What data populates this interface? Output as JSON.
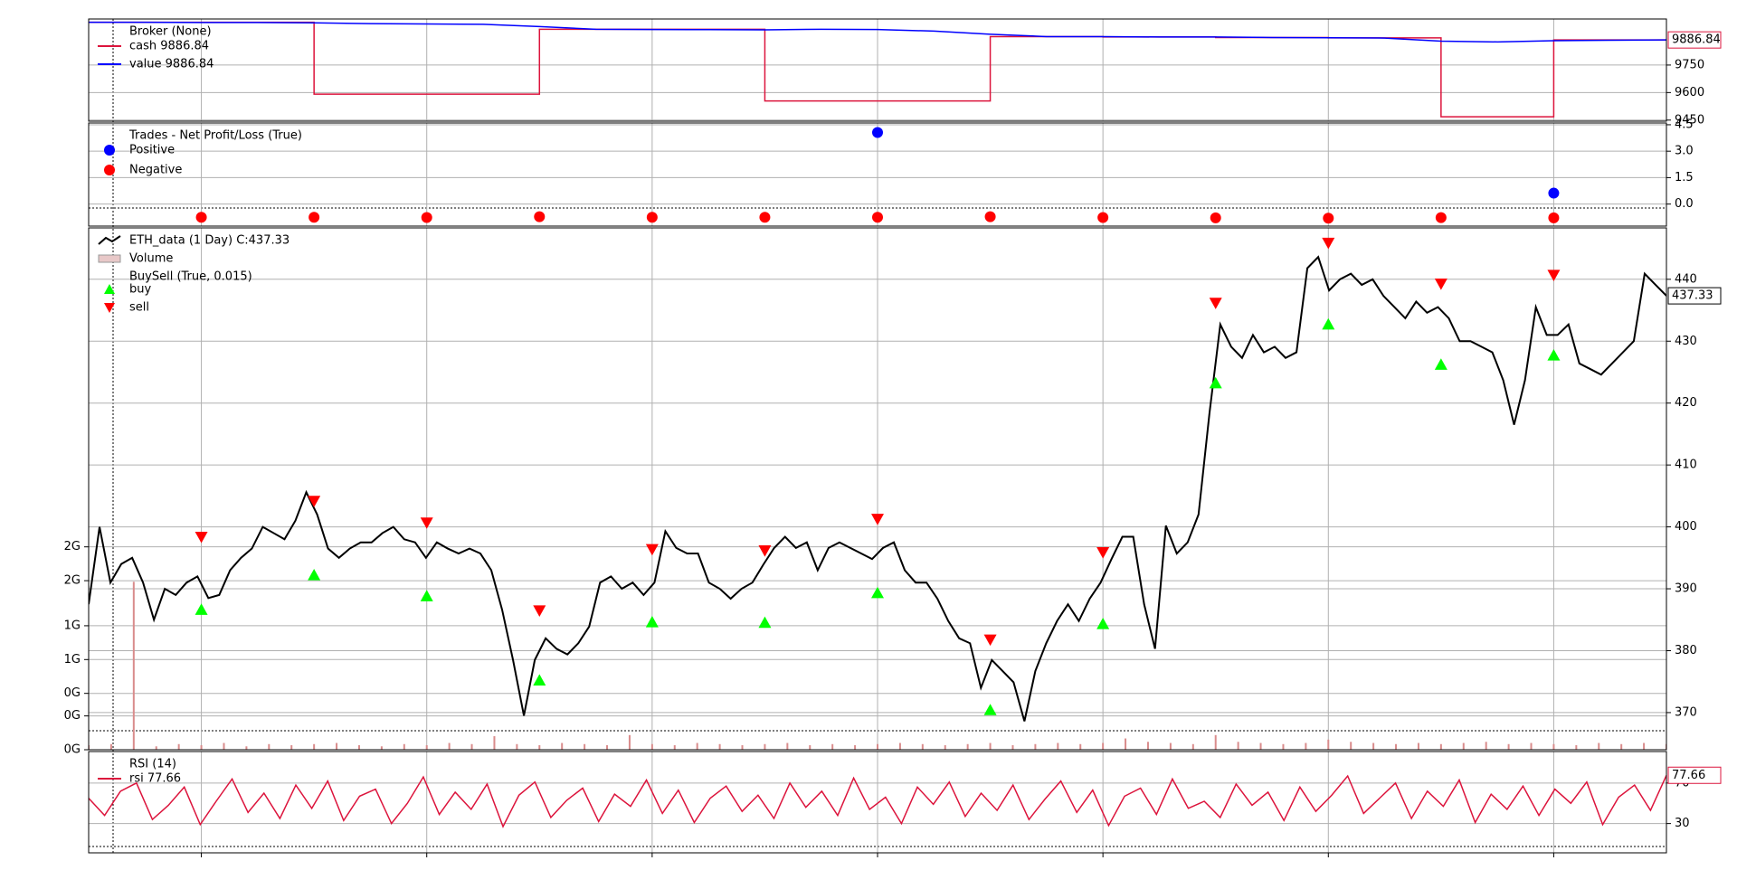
{
  "chart_data": [
    {
      "type": "line",
      "legend_title": "Broker (None)",
      "grid": true,
      "ylim": [
        9444,
        10001
      ],
      "yticks": [
        9450,
        9600,
        9750
      ],
      "last_label": "9886.84",
      "series": [
        {
          "name": "cash 9886.84",
          "color": "#dc143c",
          "drawstyle": "steps-post",
          "values": [
            9983,
            9983,
            9983,
            9983,
            9591,
            9591,
            9591,
            9591,
            9945,
            9945,
            9945,
            9945,
            9554,
            9554,
            9554,
            9554,
            9905,
            9905,
            9903,
            9903,
            9900,
            9900,
            9898,
            9898,
            9468,
            9468,
            9886.84,
            9886.84,
            9886.84
          ]
        },
        {
          "name": "value 9886.84",
          "color": "#0000ff",
          "values": [
            9983,
            9983,
            9982,
            9982,
            9980,
            9976,
            9974,
            9972,
            9960,
            9945,
            9944,
            9943,
            9942,
            9945,
            9944,
            9935,
            9918,
            9905,
            9905,
            9903,
            9903,
            9900,
            9899,
            9897,
            9880,
            9876,
            9883,
            9885,
            9886.84
          ]
        }
      ]
    },
    {
      "type": "scatter",
      "legend_title": "Trades - Net Profit/Loss (True)",
      "grid": true,
      "ylim": [
        -1.25,
        4.6
      ],
      "yticks": [
        {
          "value": 0,
          "label": "0.0"
        },
        {
          "value": 1.5,
          "label": "1.5"
        },
        {
          "value": 3,
          "label": "3.0"
        },
        {
          "value": 4.5,
          "label": "4.5"
        }
      ],
      "series": [
        {
          "name": "Positive",
          "color": "#0000ff",
          "values": [
            null,
            null,
            null,
            null,
            null,
            null,
            null,
            null,
            null,
            null,
            null,
            null,
            null,
            null,
            4.06,
            null,
            null,
            null,
            null,
            null,
            null,
            null,
            null,
            null,
            null,
            null,
            0.62,
            null,
            null
          ]
        },
        {
          "name": "Negative",
          "color": "#ff0000",
          "values": [
            null,
            null,
            -0.75,
            null,
            -0.75,
            null,
            -0.76,
            null,
            -0.72,
            null,
            -0.75,
            null,
            -0.75,
            null,
            -0.75,
            null,
            -0.72,
            null,
            -0.76,
            null,
            -0.78,
            null,
            -0.8,
            null,
            -0.77,
            null,
            -0.78,
            null,
            null
          ]
        }
      ]
    },
    {
      "type": "line",
      "grid": true,
      "ylim": [
        364,
        448.3
      ],
      "yticks": [
        370,
        380,
        390,
        400,
        410,
        420,
        430,
        440
      ],
      "last_label": "437.33",
      "y2lim": [
        0,
        4.63
      ],
      "y2_position": "left",
      "y2ticks": [
        {
          "value": 0,
          "label": "0G"
        },
        {
          "value": 0.3,
          "label": "0G"
        },
        {
          "value": 0.5,
          "label": "0G"
        },
        {
          "value": 0.8,
          "label": "1G"
        },
        {
          "value": 1.1,
          "label": "1G"
        },
        {
          "value": 1.5,
          "label": "2G"
        },
        {
          "value": 1.8,
          "label": "2G"
        }
      ],
      "series": [
        {
          "name": "ETH_data (1 Day) C:437.33",
          "color": "#000000",
          "values": [
            387.5,
            400,
            391,
            394,
            395,
            391,
            385,
            390,
            389,
            391,
            392,
            388.5,
            389,
            393,
            395,
            396.5,
            400,
            399,
            398,
            401,
            405.6,
            402,
            396.5,
            395,
            396.5,
            397.5,
            397.5,
            399,
            400,
            398,
            397.5,
            395,
            397.5,
            396.5,
            395.7,
            396.5,
            395.7,
            393,
            386.6,
            378.5,
            369.5,
            378.5,
            382,
            380.3,
            379.4,
            381.2,
            383.9,
            391,
            392,
            390,
            391,
            389,
            391,
            399.3,
            396.6,
            395.7,
            395.7,
            391,
            390,
            388.4,
            390,
            391,
            393.9,
            396.6,
            398.4,
            396.6,
            397.5,
            393,
            396.6,
            397.5,
            396.6,
            395.7,
            394.8,
            396.6,
            397.5,
            393,
            391,
            391,
            388.4,
            384.8,
            382,
            381.2,
            374,
            378.5,
            376.7,
            374.9,
            368.6,
            376.7,
            381.2,
            384.8,
            387.5,
            384.8,
            388.4,
            391,
            394.8,
            398.4,
            398.4,
            387.5,
            380.3,
            400.2,
            395.7,
            397.5,
            402,
            418.3,
            432.7,
            429.1,
            427.3,
            431,
            428.2,
            429.1,
            427.3,
            428.2,
            441.8,
            443.6,
            438.2,
            440,
            440.9,
            439.1,
            440,
            437.3,
            435.5,
            433.7,
            436.4,
            434.6,
            435.5,
            433.7,
            430,
            430,
            429.1,
            428.2,
            423.7,
            416.5,
            423.7,
            435.5,
            431,
            431,
            432.7,
            426.4,
            425.5,
            424.6,
            426.4,
            428.2,
            430,
            440.9,
            439.1,
            437.33
          ]
        },
        {
          "name": "Volume",
          "color": "#d98c8c",
          "kind": "bar",
          "axis": "y2",
          "values": [
            0.04,
            0.05,
            1.49,
            0.03,
            0.05,
            0.04,
            0.06,
            0.03,
            0.05,
            0.04,
            0.05,
            0.06,
            0.04,
            0.03,
            0.05,
            0.04,
            0.06,
            0.05,
            0.12,
            0.05,
            0.04,
            0.06,
            0.05,
            0.04,
            0.13,
            0.05,
            0.04,
            0.06,
            0.05,
            0.04,
            0.05,
            0.06,
            0.04,
            0.05,
            0.04,
            0.05,
            0.06,
            0.05,
            0.04,
            0.05,
            0.06,
            0.04,
            0.05,
            0.06,
            0.05,
            0.06,
            0.1,
            0.07,
            0.06,
            0.05,
            0.13,
            0.07,
            0.06,
            0.05,
            0.06,
            0.09,
            0.07,
            0.06,
            0.05,
            0.06,
            0.05,
            0.06,
            0.07,
            0.05,
            0.06,
            0.05,
            0.04,
            0.06,
            0.05,
            0.06,
            0.05
          ]
        }
      ],
      "markers_title": "BuySell (True, 0.015)",
      "markers": [
        {
          "name": "buy",
          "color": "#00ff00",
          "shape": "triangle-up",
          "values": [
            null,
            null,
            386.6,
            null,
            392.2,
            null,
            388.8,
            null,
            375.2,
            null,
            384.6,
            null,
            384.5,
            null,
            389.3,
            null,
            370.4,
            null,
            384.3,
            null,
            423.2,
            null,
            432.7,
            null,
            426.2,
            null,
            427.7,
            null,
            null
          ]
        },
        {
          "name": "sell",
          "color": "#ff0000",
          "shape": "triangle-down",
          "values": [
            null,
            null,
            398.4,
            null,
            404.2,
            null,
            400.7,
            null,
            386.5,
            null,
            396.4,
            null,
            396.2,
            null,
            401.3,
            null,
            381.8,
            null,
            395.9,
            null,
            436.2,
            null,
            445.9,
            null,
            439.3,
            null,
            440.7,
            null,
            null
          ]
        }
      ]
    },
    {
      "type": "line",
      "legend_title": "RSI (14)",
      "grid": true,
      "ylim": [
        1.1,
        101.1
      ],
      "yticks": [
        30,
        70
      ],
      "last_label": "77.66",
      "series": [
        {
          "name": "rsi 77.66",
          "color": "#dc143c",
          "values": [
            55,
            38,
            62,
            70,
            34,
            48,
            66,
            29,
            52,
            74,
            41,
            60,
            35,
            68,
            45,
            72,
            33,
            57,
            64,
            30,
            50,
            76,
            39,
            61,
            44,
            69,
            27,
            58,
            71,
            36,
            53,
            65,
            32,
            59,
            47,
            73,
            40,
            63,
            31,
            55,
            67,
            42,
            58,
            35,
            70,
            46,
            62,
            38,
            75,
            44,
            56,
            30,
            66,
            49,
            71,
            37,
            60,
            43,
            68,
            34,
            54,
            72,
            41,
            63,
            28,
            57,
            65,
            39,
            74,
            45,
            52,
            36,
            69,
            48,
            61,
            33,
            66,
            42,
            58,
            77,
            40,
            55,
            70,
            35,
            62,
            47,
            73,
            31,
            59,
            44,
            67,
            38,
            64,
            50,
            71,
            29,
            56,
            68,
            43,
            77.66
          ]
        }
      ]
    }
  ]
}
